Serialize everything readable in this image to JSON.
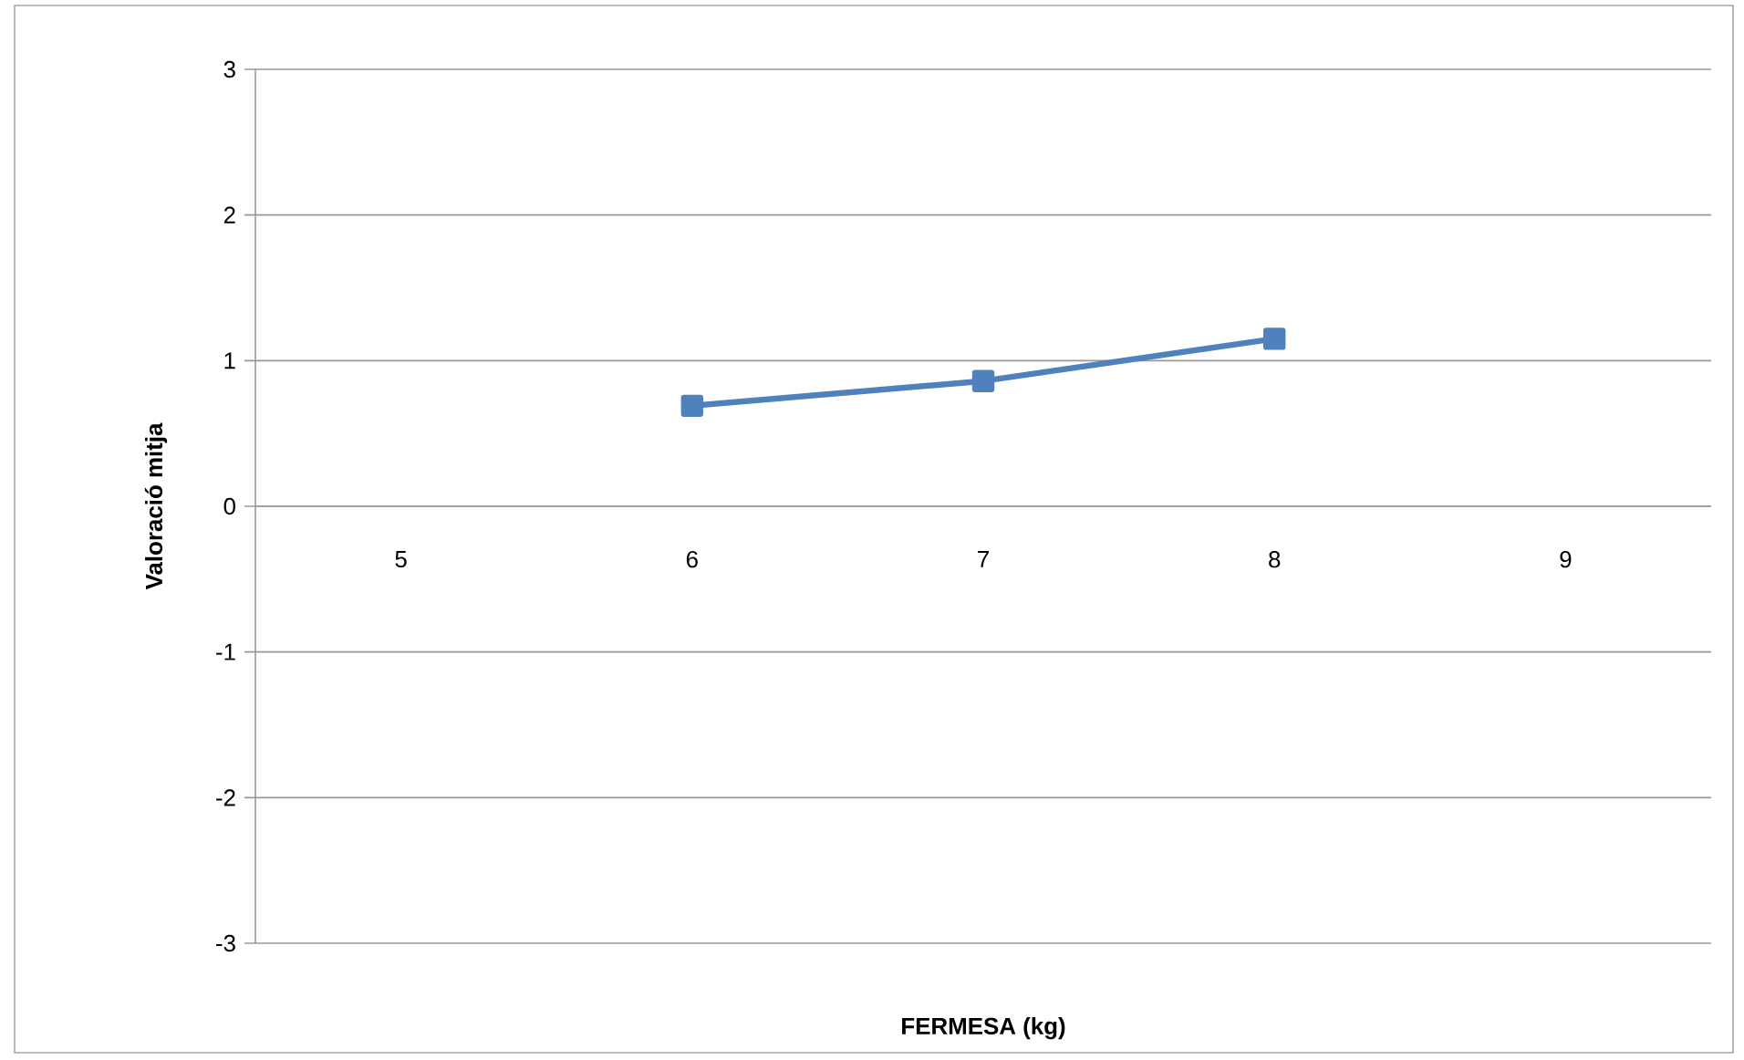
{
  "chart_data": {
    "type": "line",
    "xlabel": "FERMESA (kg)",
    "ylabel": "Valoració mitja",
    "categories": [
      "5",
      "6",
      "7",
      "8",
      "9"
    ],
    "series": [
      {
        "color": "#4f81bd",
        "values": [
          null,
          0.69,
          0.86,
          1.15,
          null
        ]
      }
    ],
    "ylim": [
      -3,
      3
    ],
    "yticks": [
      -3,
      -2,
      -1,
      0,
      1,
      2,
      3
    ],
    "grid": "y",
    "marker": "square",
    "line_style": "solid"
  }
}
